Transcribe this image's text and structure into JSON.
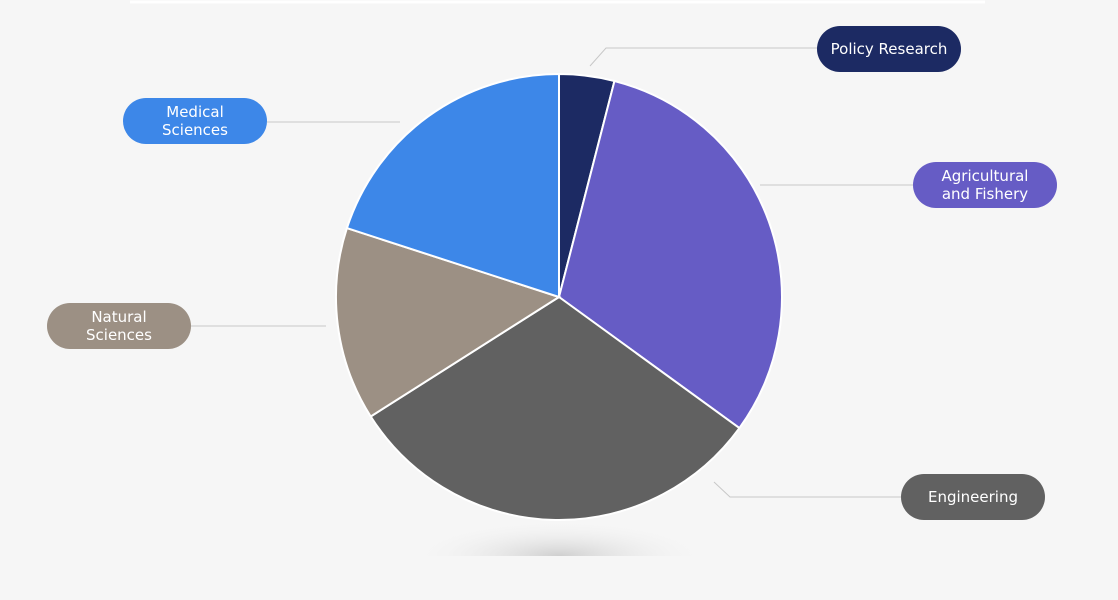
{
  "chart_data": {
    "type": "pie",
    "labels": [
      "Policy Research",
      "Agricultural and Fishery",
      "Engineering",
      "Natural Sciences",
      "Medical Sciences"
    ],
    "values": [
      4,
      31,
      31,
      14,
      20
    ],
    "colors": [
      "#1c2a63",
      "#665cc5",
      "#616161",
      "#9c9084",
      "#3d87e8"
    ]
  }
}
